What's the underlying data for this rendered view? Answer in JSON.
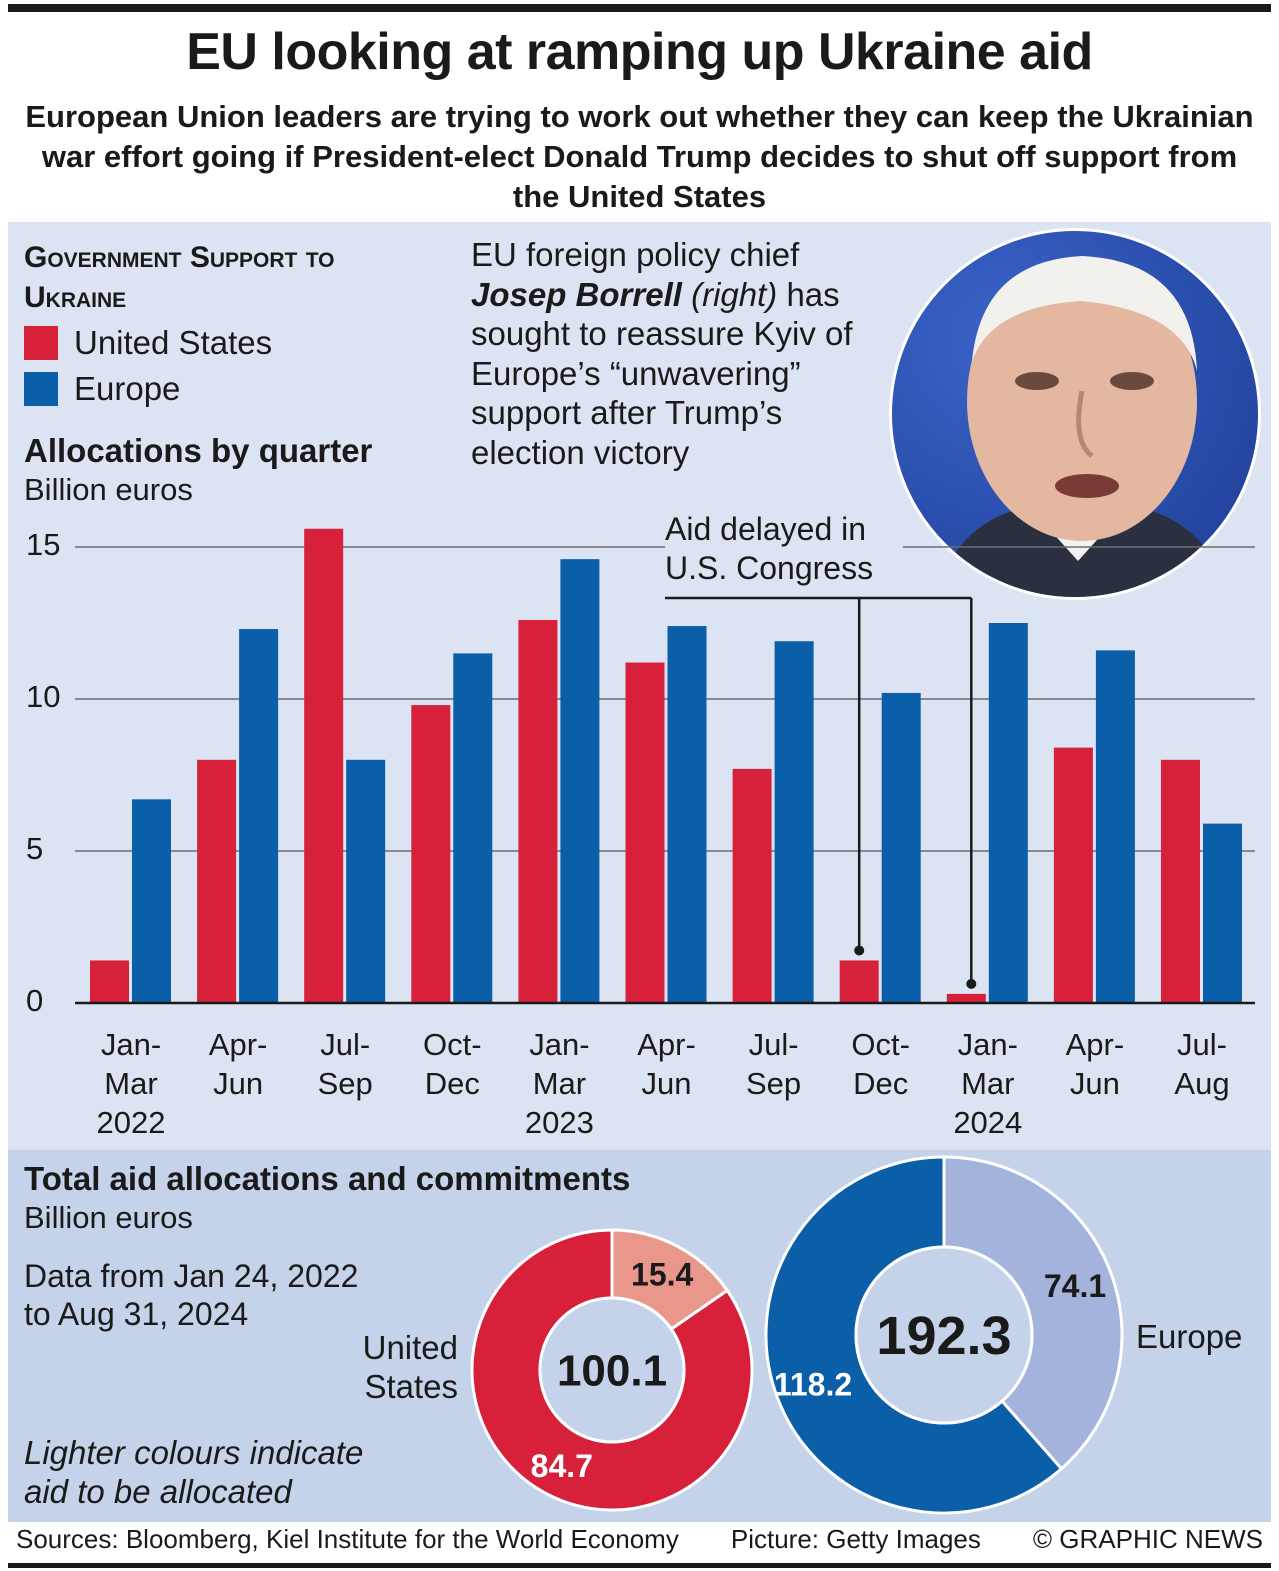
{
  "header": {
    "title": "EU looking at ramping up Ukraine aid",
    "subtitle": "European Union leaders are trying to work out whether they can keep the Ukrainian war effort going if President-elect Donald Trump decides to shut off support from the United States"
  },
  "legend": {
    "title": "Government Support to Ukraine",
    "items": [
      {
        "label": "United States",
        "color": "#d7213a"
      },
      {
        "label": "Europe",
        "color": "#0b5ea8"
      }
    ]
  },
  "caption": {
    "line1": "EU foreign policy chief",
    "name": "Josep Borrell",
    "right": "(right)",
    "rest1": " has",
    "rest2": "sought to reassure Kyiv of Europe’s “unwavering” support after Trump’s election victory"
  },
  "chart_data": [
    {
      "type": "bar",
      "title": "Allocations by quarter",
      "ylabel": "Billion euros",
      "ylim": [
        0,
        16
      ],
      "yticks": [
        0,
        5,
        10,
        15
      ],
      "grid": true,
      "categories": [
        [
          "Jan-",
          "Mar",
          "2022"
        ],
        [
          "Apr-",
          "Jun",
          ""
        ],
        [
          "Jul-",
          "Sep",
          ""
        ],
        [
          "Oct-",
          "Dec",
          ""
        ],
        [
          "Jan-",
          "Mar",
          "2023"
        ],
        [
          "Apr-",
          "Jun",
          ""
        ],
        [
          "Jul-",
          "Sep",
          ""
        ],
        [
          "Oct-",
          "Dec",
          ""
        ],
        [
          "Jan-",
          "Mar",
          "2024"
        ],
        [
          "Apr-",
          "Jun",
          ""
        ],
        [
          "Jul-",
          "Aug",
          ""
        ]
      ],
      "series": [
        {
          "name": "United States",
          "color": "#d7213a",
          "values": [
            1.4,
            8.0,
            15.6,
            9.8,
            12.6,
            11.2,
            7.7,
            1.4,
            0.3,
            8.4,
            8.0
          ]
        },
        {
          "name": "Europe",
          "color": "#0b5ea8",
          "values": [
            6.7,
            12.3,
            8.0,
            11.5,
            14.6,
            12.4,
            11.9,
            10.2,
            12.5,
            11.6,
            5.9
          ]
        }
      ],
      "annotation": {
        "text": "Aid delayed in U.S. Congress",
        "points": [
          7,
          8
        ]
      }
    },
    {
      "type": "pie",
      "title": "Total aid allocations and commitments",
      "unit": "Billion euros",
      "name": "United States",
      "total": "100.1",
      "slices": [
        {
          "label": "15.4",
          "value": 15.4,
          "color": "#e8978a"
        },
        {
          "label": "84.7",
          "value": 84.7,
          "color": "#d7213a"
        }
      ]
    },
    {
      "type": "pie",
      "name": "Europe",
      "total": "192.3",
      "slices": [
        {
          "label": "74.1",
          "value": 74.1,
          "color": "#a4b3dc"
        },
        {
          "label": "118.2",
          "value": 118.2,
          "color": "#0b5ea8"
        }
      ]
    }
  ],
  "totals": {
    "date_range_1": "Data from Jan 24, 2022",
    "date_range_2": "to Aug 31, 2024",
    "us_label_1": "United",
    "us_label_2": "States",
    "eu_label": "Europe",
    "note_1": "Lighter colours indicate",
    "note_2": "aid to be allocated"
  },
  "footer": {
    "sources": "Sources: Bloomberg, Kiel Institute for the World Economy",
    "picture": "Picture: Getty Images",
    "credit": "© GRAPHIC NEWS"
  }
}
